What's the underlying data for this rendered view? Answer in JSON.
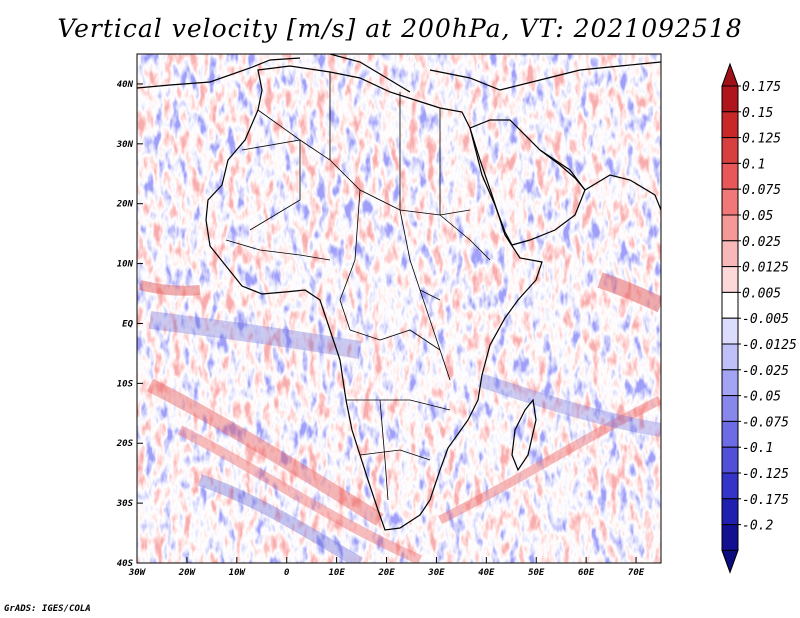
{
  "title": "Vertical velocity [m/s] at 200hPa, VT: 2021092518",
  "credit": "GrADS: IGES/COLA",
  "map": {
    "lon_range": [
      -30,
      75
    ],
    "lat_range": [
      -40,
      45
    ],
    "x_ticks": [
      "30W",
      "20W",
      "10W",
      "0",
      "10E",
      "20E",
      "30E",
      "40E",
      "50E",
      "60E",
      "70E"
    ],
    "y_ticks": [
      "40N",
      "30N",
      "20N",
      "10N",
      "EQ",
      "10S",
      "20S",
      "30S",
      "40S"
    ],
    "region": "Africa, Arabian Peninsula and adjacent Atlantic/Indian Ocean"
  },
  "colorbar": {
    "levels": [
      "0.175",
      "0.15",
      "0.125",
      "0.1",
      "0.075",
      "0.05",
      "0.025",
      "0.0125",
      "0.005",
      "-0.005",
      "-0.0125",
      "-0.025",
      "-0.05",
      "-0.075",
      "-0.1",
      "-0.125",
      "-0.175",
      "-0.2"
    ],
    "colors": [
      "#b0141c",
      "#c82828",
      "#d84040",
      "#e85858",
      "#f07878",
      "#f49898",
      "#f8b8b8",
      "#fcd8d8",
      "#ffffff",
      "#dcdcfc",
      "#c0c0f8",
      "#a4a4f4",
      "#8888ec",
      "#6c6ce4",
      "#5050d8",
      "#3434c8",
      "#2020b0",
      "#101090"
    ],
    "top_color": "#a01018",
    "bottom_color": "#0c0c7c"
  }
}
